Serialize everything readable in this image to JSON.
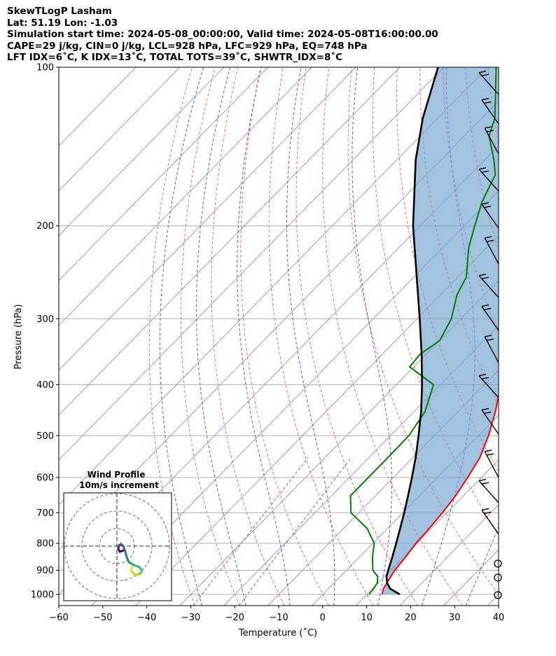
{
  "header": {
    "line1": "SkewTLogP Lasham",
    "line2": "Lat: 51.19   Lon: -1.03",
    "line3": "Simulation start time: 2024-05-08_00:00:00, Valid time: 2024-05-08T16:00:00.00",
    "line4": "CAPE=29 j/kg, CIN=0 j/kg, LCL=928 hPa, LFC=929 hPa, EQ=748 hPa",
    "line5": "LFT IDX=6˚C, K IDX=13˚C, TOTAL TOTS=39˚C, SHWTR_IDX=8˚C"
  },
  "chart_data": {
    "type": "line",
    "subtype": "skew-T log-P",
    "xlabel": "Temperature (˚C)",
    "ylabel": "Pressure (hPa)",
    "xlim": [
      -60,
      40
    ],
    "ylim": [
      1050,
      100
    ],
    "y_scale": "log",
    "x_ticks": [
      -60,
      -50,
      -40,
      -30,
      -20,
      -10,
      0,
      10,
      20,
      30,
      40
    ],
    "y_ticks": [
      1000,
      900,
      800,
      700,
      600,
      500,
      400,
      300,
      200,
      100
    ],
    "grid": true,
    "colors": {
      "temperature": "#ff0000",
      "dewpoint": "#008000",
      "parcel": "#000000",
      "cape_fill": "#6fa3cf",
      "dry_adiabat": "#ff6666",
      "moist_adiabat": "#5555ff",
      "mixing_ratio": "#9b59b6",
      "isotherm": "#999999"
    },
    "series": [
      {
        "key": "temperature",
        "pressure": [
          1000,
          975,
          950,
          925,
          900,
          850,
          800,
          750,
          700,
          650,
          600,
          550,
          500,
          450,
          400,
          350,
          300,
          250,
          200,
          150,
          125,
          100
        ],
        "temperature": [
          13.5,
          12.5,
          12.0,
          11.5,
          11.0,
          10.5,
          9.8,
          9.5,
          9.0,
          8.2,
          6.9,
          5.2,
          2.3,
          -1.5,
          -6.3,
          -11.3,
          -17.1,
          -24.9,
          -36.6,
          -47.0,
          -54.7,
          -64.9
        ]
      },
      {
        "key": "dewpoint",
        "pressure": [
          1000,
          975,
          950,
          925,
          900,
          850,
          800,
          750,
          700,
          650,
          600,
          550,
          500,
          450,
          400,
          370,
          350,
          330,
          300,
          270,
          250,
          220,
          200,
          180,
          160,
          150,
          135,
          125,
          100
        ],
        "dewpoint": [
          10.5,
          10.3,
          9.8,
          8.5,
          6.0,
          3.0,
          0.3,
          -4.6,
          -11.8,
          -15.7,
          -15.7,
          -15.7,
          -15.8,
          -17.5,
          -21.6,
          -31.0,
          -31.4,
          -30.0,
          -32.2,
          -36.3,
          -38.1,
          -44.1,
          -47.6,
          -51.3,
          -54.3,
          -57.9,
          -64.4,
          -67.0,
          -78.1
        ]
      },
      {
        "key": "parcel",
        "pressure": [
          1000,
          975,
          950,
          925,
          900,
          850,
          800,
          750,
          700,
          650,
          600,
          550,
          500,
          450,
          400,
          350,
          300,
          250,
          200,
          150,
          125,
          100
        ],
        "temperature": [
          17.5,
          14.0,
          12.0,
          10.5,
          9.5,
          7.5,
          5.3,
          2.9,
          0.3,
          -2.6,
          -5.8,
          -9.4,
          -13.6,
          -18.4,
          -24.2,
          -31.1,
          -39.4,
          -49.4,
          -61.6,
          -75.7,
          -83.4,
          -91.3
        ]
      }
    ],
    "wind_profile": {
      "title": "Wind Profile",
      "subtitle": "10m/s increment"
    }
  }
}
